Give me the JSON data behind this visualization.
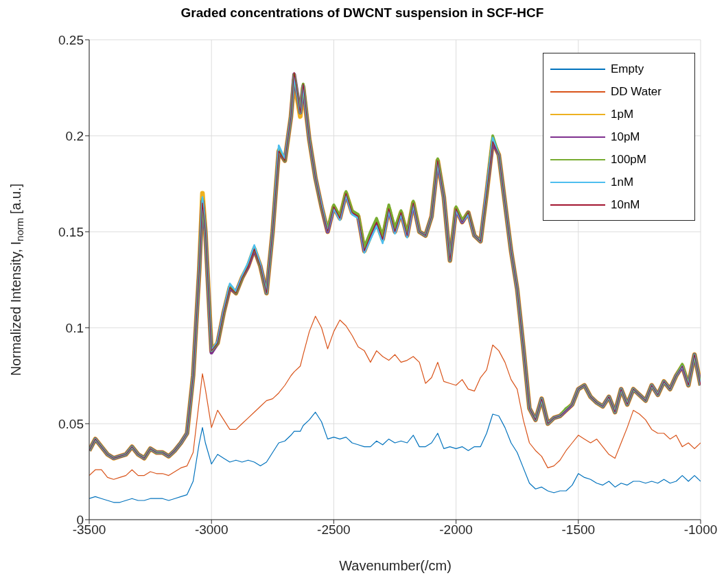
{
  "chart_data": {
    "type": "line",
    "title": "Graded concentrations of DWCNT suspension in SCF-HCF",
    "xlabel": "Wavenumber(/cm)",
    "ylabel": "Normalized Intensity, I$_{norm}$ [a.u.]",
    "x": [
      -3500,
      -3475,
      -3450,
      -3425,
      -3400,
      -3375,
      -3350,
      -3325,
      -3300,
      -3275,
      -3250,
      -3225,
      -3200,
      -3175,
      -3150,
      -3125,
      -3100,
      -3075,
      -3050,
      -3037,
      -3025,
      -3000,
      -2975,
      -2950,
      -2925,
      -2900,
      -2875,
      -2850,
      -2825,
      -2800,
      -2775,
      -2750,
      -2725,
      -2700,
      -2675,
      -2662,
      -2637,
      -2625,
      -2600,
      -2575,
      -2550,
      -2525,
      -2500,
      -2475,
      -2450,
      -2425,
      -2400,
      -2375,
      -2350,
      -2325,
      -2300,
      -2275,
      -2250,
      -2225,
      -2200,
      -2175,
      -2150,
      -2125,
      -2100,
      -2075,
      -2050,
      -2025,
      -2000,
      -1975,
      -1950,
      -1925,
      -1900,
      -1875,
      -1850,
      -1825,
      -1800,
      -1775,
      -1750,
      -1725,
      -1700,
      -1675,
      -1650,
      -1625,
      -1600,
      -1575,
      -1550,
      -1525,
      -1500,
      -1475,
      -1450,
      -1425,
      -1400,
      -1375,
      -1350,
      -1325,
      -1300,
      -1275,
      -1250,
      -1225,
      -1200,
      -1175,
      -1150,
      -1125,
      -1100,
      -1075,
      -1050,
      -1025,
      -1000
    ],
    "series": [
      {
        "name": "Empty",
        "color": "#0072bd",
        "values": [
          0.011,
          0.012,
          0.011,
          0.01,
          0.009,
          0.009,
          0.01,
          0.011,
          0.01,
          0.01,
          0.011,
          0.011,
          0.011,
          0.01,
          0.011,
          0.012,
          0.013,
          0.02,
          0.04,
          0.048,
          0.04,
          0.029,
          0.034,
          0.032,
          0.03,
          0.031,
          0.03,
          0.031,
          0.03,
          0.028,
          0.03,
          0.035,
          0.04,
          0.041,
          0.044,
          0.046,
          0.046,
          0.049,
          0.052,
          0.056,
          0.051,
          0.042,
          0.043,
          0.042,
          0.043,
          0.04,
          0.039,
          0.038,
          0.038,
          0.041,
          0.039,
          0.042,
          0.04,
          0.041,
          0.04,
          0.044,
          0.038,
          0.038,
          0.04,
          0.045,
          0.037,
          0.038,
          0.037,
          0.038,
          0.036,
          0.038,
          0.038,
          0.045,
          0.055,
          0.054,
          0.048,
          0.04,
          0.035,
          0.027,
          0.019,
          0.016,
          0.017,
          0.015,
          0.014,
          0.015,
          0.015,
          0.018,
          0.024,
          0.022,
          0.021,
          0.019,
          0.018,
          0.02,
          0.017,
          0.019,
          0.018,
          0.02,
          0.02,
          0.019,
          0.02,
          0.019,
          0.021,
          0.019,
          0.02,
          0.023,
          0.02,
          0.023,
          0.02
        ]
      },
      {
        "name": "DD Water",
        "color": "#d95319",
        "values": [
          0.023,
          0.026,
          0.026,
          0.022,
          0.021,
          0.022,
          0.023,
          0.026,
          0.023,
          0.023,
          0.025,
          0.024,
          0.024,
          0.023,
          0.025,
          0.027,
          0.028,
          0.035,
          0.062,
          0.076,
          0.068,
          0.048,
          0.057,
          0.052,
          0.047,
          0.047,
          0.05,
          0.053,
          0.056,
          0.059,
          0.062,
          0.063,
          0.066,
          0.07,
          0.075,
          0.077,
          0.08,
          0.086,
          0.098,
          0.106,
          0.1,
          0.089,
          0.098,
          0.104,
          0.101,
          0.096,
          0.09,
          0.088,
          0.082,
          0.088,
          0.085,
          0.083,
          0.086,
          0.082,
          0.083,
          0.085,
          0.082,
          0.071,
          0.074,
          0.082,
          0.072,
          0.071,
          0.07,
          0.073,
          0.068,
          0.067,
          0.074,
          0.078,
          0.091,
          0.088,
          0.082,
          0.073,
          0.068,
          0.052,
          0.04,
          0.036,
          0.033,
          0.027,
          0.028,
          0.031,
          0.036,
          0.04,
          0.044,
          0.042,
          0.04,
          0.042,
          0.038,
          0.034,
          0.032,
          0.04,
          0.048,
          0.057,
          0.055,
          0.052,
          0.047,
          0.045,
          0.045,
          0.042,
          0.044,
          0.038,
          0.04,
          0.037,
          0.04
        ]
      },
      {
        "name": "1pM",
        "color": "#edb120",
        "values": [
          0.036,
          0.042,
          0.038,
          0.034,
          0.032,
          0.033,
          0.034,
          0.038,
          0.034,
          0.032,
          0.037,
          0.035,
          0.035,
          0.033,
          0.036,
          0.04,
          0.045,
          0.075,
          0.13,
          0.17,
          0.15,
          0.088,
          0.092,
          0.108,
          0.121,
          0.118,
          0.126,
          0.132,
          0.141,
          0.132,
          0.118,
          0.15,
          0.192,
          0.187,
          0.21,
          0.229,
          0.21,
          0.225,
          0.198,
          0.178,
          0.163,
          0.15,
          0.163,
          0.157,
          0.17,
          0.16,
          0.158,
          0.14,
          0.148,
          0.155,
          0.146,
          0.162,
          0.15,
          0.16,
          0.148,
          0.165,
          0.15,
          0.148,
          0.158,
          0.187,
          0.168,
          0.135,
          0.162,
          0.155,
          0.16,
          0.148,
          0.145,
          0.17,
          0.197,
          0.19,
          0.165,
          0.14,
          0.12,
          0.09,
          0.058,
          0.052,
          0.063,
          0.05,
          0.053,
          0.054,
          0.057,
          0.06,
          0.068,
          0.07,
          0.064,
          0.061,
          0.059,
          0.064,
          0.056,
          0.068,
          0.06,
          0.068,
          0.065,
          0.062,
          0.07,
          0.065,
          0.072,
          0.068,
          0.075,
          0.08,
          0.07,
          0.086,
          0.07
        ]
      },
      {
        "name": "10pM",
        "color": "#7e2f8e",
        "values": [
          0.036,
          0.042,
          0.038,
          0.034,
          0.032,
          0.033,
          0.034,
          0.038,
          0.034,
          0.032,
          0.037,
          0.035,
          0.035,
          0.033,
          0.036,
          0.04,
          0.045,
          0.075,
          0.13,
          0.166,
          0.15,
          0.087,
          0.092,
          0.108,
          0.121,
          0.118,
          0.126,
          0.132,
          0.141,
          0.132,
          0.118,
          0.15,
          0.192,
          0.187,
          0.21,
          0.232,
          0.212,
          0.226,
          0.198,
          0.178,
          0.163,
          0.15,
          0.163,
          0.157,
          0.17,
          0.16,
          0.158,
          0.14,
          0.148,
          0.155,
          0.146,
          0.162,
          0.15,
          0.16,
          0.148,
          0.165,
          0.15,
          0.148,
          0.158,
          0.187,
          0.168,
          0.135,
          0.162,
          0.155,
          0.16,
          0.148,
          0.145,
          0.17,
          0.197,
          0.19,
          0.165,
          0.14,
          0.12,
          0.09,
          0.058,
          0.052,
          0.063,
          0.05,
          0.053,
          0.054,
          0.057,
          0.06,
          0.068,
          0.07,
          0.064,
          0.061,
          0.059,
          0.064,
          0.056,
          0.068,
          0.06,
          0.068,
          0.065,
          0.062,
          0.07,
          0.065,
          0.072,
          0.068,
          0.075,
          0.08,
          0.07,
          0.086,
          0.07
        ]
      },
      {
        "name": "100pM",
        "color": "#77ac30",
        "values": [
          0.036,
          0.042,
          0.038,
          0.034,
          0.032,
          0.033,
          0.034,
          0.038,
          0.034,
          0.032,
          0.037,
          0.035,
          0.035,
          0.033,
          0.036,
          0.04,
          0.045,
          0.075,
          0.13,
          0.167,
          0.15,
          0.088,
          0.092,
          0.108,
          0.122,
          0.118,
          0.126,
          0.133,
          0.142,
          0.132,
          0.118,
          0.15,
          0.193,
          0.187,
          0.21,
          0.232,
          0.212,
          0.227,
          0.198,
          0.178,
          0.163,
          0.151,
          0.164,
          0.158,
          0.171,
          0.161,
          0.159,
          0.142,
          0.15,
          0.157,
          0.148,
          0.164,
          0.152,
          0.161,
          0.149,
          0.166,
          0.15,
          0.148,
          0.158,
          0.188,
          0.168,
          0.135,
          0.163,
          0.156,
          0.16,
          0.148,
          0.145,
          0.17,
          0.2,
          0.19,
          0.165,
          0.14,
          0.12,
          0.09,
          0.058,
          0.052,
          0.063,
          0.05,
          0.053,
          0.054,
          0.058,
          0.06,
          0.068,
          0.07,
          0.064,
          0.061,
          0.059,
          0.064,
          0.056,
          0.068,
          0.06,
          0.068,
          0.065,
          0.062,
          0.07,
          0.065,
          0.072,
          0.068,
          0.075,
          0.081,
          0.07,
          0.086,
          0.07
        ]
      },
      {
        "name": "1nM",
        "color": "#4dbeee",
        "values": [
          0.036,
          0.042,
          0.038,
          0.034,
          0.032,
          0.033,
          0.034,
          0.038,
          0.034,
          0.032,
          0.037,
          0.035,
          0.035,
          0.033,
          0.036,
          0.04,
          0.045,
          0.075,
          0.13,
          0.168,
          0.15,
          0.088,
          0.093,
          0.109,
          0.123,
          0.119,
          0.127,
          0.134,
          0.143,
          0.133,
          0.118,
          0.15,
          0.195,
          0.188,
          0.21,
          0.231,
          0.212,
          0.226,
          0.198,
          0.178,
          0.164,
          0.15,
          0.162,
          0.156,
          0.169,
          0.159,
          0.157,
          0.139,
          0.146,
          0.153,
          0.144,
          0.161,
          0.149,
          0.159,
          0.147,
          0.164,
          0.15,
          0.148,
          0.158,
          0.186,
          0.168,
          0.135,
          0.161,
          0.155,
          0.159,
          0.148,
          0.145,
          0.172,
          0.199,
          0.19,
          0.165,
          0.14,
          0.12,
          0.09,
          0.058,
          0.052,
          0.063,
          0.05,
          0.053,
          0.054,
          0.057,
          0.06,
          0.068,
          0.07,
          0.064,
          0.061,
          0.059,
          0.064,
          0.056,
          0.068,
          0.06,
          0.068,
          0.065,
          0.062,
          0.07,
          0.065,
          0.072,
          0.068,
          0.075,
          0.08,
          0.07,
          0.086,
          0.07
        ]
      },
      {
        "name": "10nM",
        "color": "#a2142f",
        "values": [
          0.036,
          0.042,
          0.038,
          0.034,
          0.032,
          0.033,
          0.034,
          0.038,
          0.034,
          0.032,
          0.037,
          0.035,
          0.035,
          0.033,
          0.036,
          0.04,
          0.045,
          0.075,
          0.13,
          0.165,
          0.15,
          0.088,
          0.092,
          0.108,
          0.121,
          0.118,
          0.126,
          0.132,
          0.141,
          0.132,
          0.118,
          0.15,
          0.192,
          0.187,
          0.21,
          0.233,
          0.212,
          0.227,
          0.198,
          0.178,
          0.163,
          0.15,
          0.163,
          0.157,
          0.17,
          0.16,
          0.158,
          0.14,
          0.148,
          0.155,
          0.146,
          0.162,
          0.15,
          0.16,
          0.148,
          0.165,
          0.15,
          0.148,
          0.158,
          0.187,
          0.168,
          0.135,
          0.162,
          0.155,
          0.16,
          0.148,
          0.145,
          0.17,
          0.197,
          0.19,
          0.165,
          0.14,
          0.12,
          0.09,
          0.058,
          0.052,
          0.063,
          0.05,
          0.053,
          0.054,
          0.057,
          0.06,
          0.068,
          0.07,
          0.064,
          0.061,
          0.059,
          0.064,
          0.056,
          0.068,
          0.06,
          0.068,
          0.065,
          0.062,
          0.07,
          0.065,
          0.072,
          0.068,
          0.075,
          0.08,
          0.07,
          0.086,
          0.07
        ]
      }
    ],
    "xlim": [
      -3500,
      -1000
    ],
    "xticks": [
      -3500,
      -3000,
      -2500,
      -2000,
      -1500,
      -1000
    ],
    "ylim": [
      0,
      0.25
    ],
    "yticks": [
      0,
      0.05,
      0.1,
      0.15,
      0.2,
      0.25
    ],
    "grid": true,
    "legend": "top right",
    "marker": "none",
    "line_style": "solid"
  }
}
